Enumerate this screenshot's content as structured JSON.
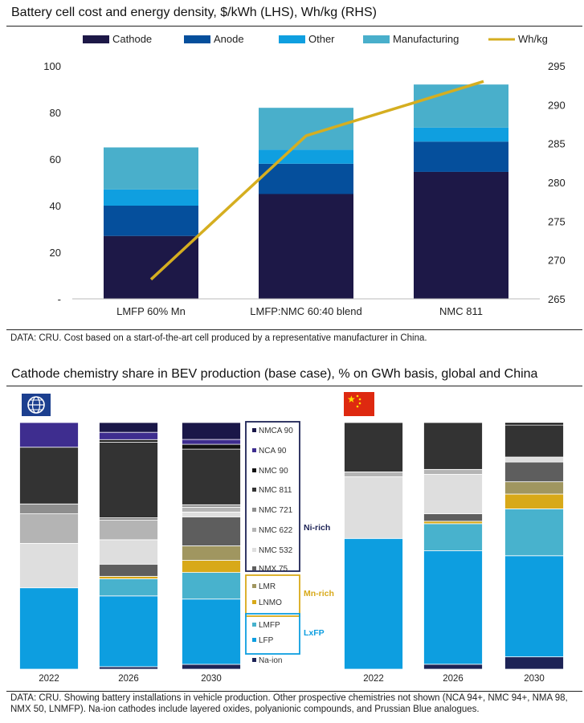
{
  "chart_data": [
    {
      "type": "bar",
      "title": "Battery cell cost and energy density, $/kWh (LHS), Wh/kg (RHS)",
      "stacked": true,
      "categories": [
        "LMFP 60% Mn",
        "LMFP:NMC 60:40 blend",
        "NMC 811"
      ],
      "series": [
        {
          "name": "Cathode",
          "color": "#1d1847",
          "values": [
            27,
            45,
            54.5
          ]
        },
        {
          "name": "Anode",
          "color": "#054f9c",
          "values": [
            13,
            13,
            13
          ]
        },
        {
          "name": "Other",
          "color": "#0f9fe0",
          "values": [
            7,
            6,
            6
          ]
        },
        {
          "name": "Manufacturing",
          "color": "#49afcb",
          "values": [
            18,
            18,
            18.5
          ]
        }
      ],
      "line_series": {
        "name": "Wh/kg",
        "color": "#d5ae20",
        "axis": "right",
        "values": [
          267.5,
          286,
          293
        ]
      },
      "y_left": {
        "ticks": [
          "-",
          "20",
          "40",
          "60",
          "80",
          "100"
        ],
        "lim": [
          0,
          100
        ]
      },
      "y_right": {
        "ticks": [
          "265",
          "270",
          "275",
          "280",
          "285",
          "290",
          "295"
        ],
        "lim": [
          265,
          295
        ]
      },
      "legend_position": "top",
      "grid": false,
      "source_note": "DATA: CRU. Cost based on a start-of-the-art cell produced by a representative manufacturer in China."
    },
    {
      "type": "bar",
      "title": "Cathode chemistry share in BEV production (base case), % on GWh basis, global and China",
      "stacked": true,
      "normalized": true,
      "panels": [
        {
          "region": "global",
          "icon": "globe-icon",
          "categories": [
            "2022",
            "2026",
            "2030"
          ]
        },
        {
          "region": "china",
          "icon": "china-flag-icon",
          "categories": [
            "2022",
            "2026",
            "2030"
          ]
        }
      ],
      "series": [
        {
          "name": "Na-ion",
          "color": "#1d2356",
          "group": "",
          "global": [
            0,
            1,
            2
          ],
          "china": [
            0,
            2,
            5
          ]
        },
        {
          "name": "LFP",
          "color": "#0d9ee0",
          "group": "LxFP",
          "global": [
            33,
            29,
            27
          ],
          "china": [
            53,
            46,
            41
          ]
        },
        {
          "name": "LMFP",
          "color": "#48b2cd",
          "group": "LxFP",
          "global": [
            0,
            7,
            11
          ],
          "china": [
            0,
            11,
            19
          ]
        },
        {
          "name": "LNMO",
          "color": "#d8a919",
          "group": "Mn-rich",
          "global": [
            0,
            1,
            5
          ],
          "china": [
            0,
            1,
            6
          ]
        },
        {
          "name": "LMR",
          "color": "#a09660",
          "group": "Mn-rich",
          "global": [
            0,
            0,
            6
          ],
          "china": [
            0,
            0,
            5
          ]
        },
        {
          "name": "NMX 75",
          "color": "#5e5e5e",
          "group": "Ni-rich",
          "global": [
            0,
            5,
            12
          ],
          "china": [
            0,
            3,
            8
          ]
        },
        {
          "name": "NMC 532",
          "color": "#dedede",
          "group": "Ni-rich",
          "global": [
            18,
            10,
            2
          ],
          "china": [
            25,
            16,
            2
          ]
        },
        {
          "name": "NMC 622",
          "color": "#b4b4b4",
          "group": "Ni-rich",
          "global": [
            12,
            8,
            2
          ],
          "china": [
            2,
            2,
            0
          ]
        },
        {
          "name": "NMC 721",
          "color": "#8e8e8e",
          "group": "Ni-rich",
          "global": [
            4,
            1,
            1
          ],
          "china": [
            0,
            0,
            0
          ]
        },
        {
          "name": "NMC 811",
          "color": "#333333",
          "group": "Ni-rich",
          "global": [
            23,
            31,
            23
          ],
          "china": [
            20,
            19,
            13
          ]
        },
        {
          "name": "NMC 90",
          "color": "#121212",
          "group": "Ni-rich",
          "global": [
            0,
            1,
            2
          ],
          "china": [
            0,
            0,
            1
          ]
        },
        {
          "name": "NCA 90",
          "color": "#3e2d8f",
          "group": "Ni-rich",
          "global": [
            10,
            3,
            2
          ],
          "china": [
            0,
            0,
            0
          ]
        },
        {
          "name": "NMCA 90",
          "color": "#1a1748",
          "group": "Ni-rich",
          "global": [
            0,
            4,
            7
          ],
          "china": [
            0,
            0,
            0
          ]
        }
      ],
      "legend_groups": [
        {
          "label": "Ni-rich",
          "color": "#1d2356",
          "items": [
            "NMCA 90",
            "NCA 90",
            "NMC 90",
            "NMC 811",
            "NMC 721",
            "NMC 622",
            "NMC 532",
            "NMX 75"
          ]
        },
        {
          "label": "Mn-rich",
          "color": "#d8a919",
          "items": [
            "LMR",
            "LNMO"
          ]
        },
        {
          "label": "LxFP",
          "color": "#0d9ee0",
          "items": [
            "LMFP",
            "LFP"
          ]
        },
        {
          "label": "",
          "color": "",
          "items": [
            "Na-ion"
          ]
        }
      ],
      "source_note": "DATA: CRU. Showing battery installations in vehicle production. Other prospective chemistries not shown (NCA 94+, NMC 94+, NMA 98, NMX 50, LNMFP). Na-ion cathodes include layered oxides, polyanionic compounds, and Prussian Blue analogues."
    }
  ]
}
